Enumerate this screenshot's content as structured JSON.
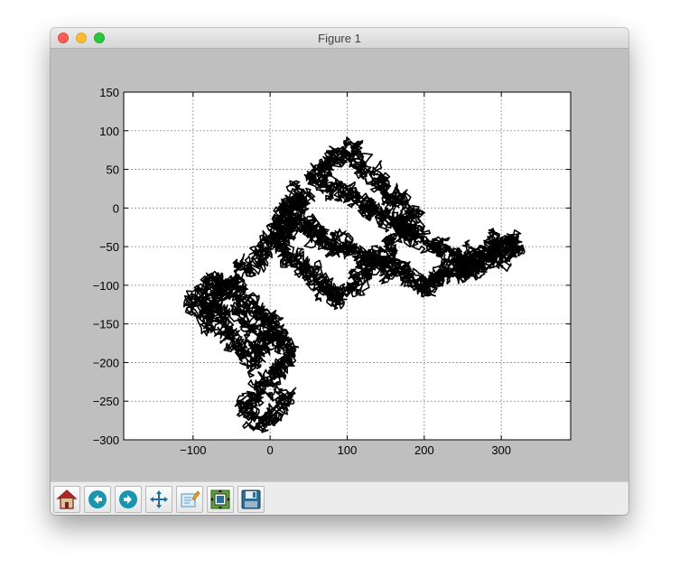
{
  "window": {
    "title": "Figure 1"
  },
  "toolbar": {
    "buttons": [
      {
        "name": "home",
        "icon": "home-icon"
      },
      {
        "name": "back",
        "icon": "back-arrow-icon"
      },
      {
        "name": "forward",
        "icon": "forward-arrow-icon"
      },
      {
        "name": "pan",
        "icon": "move-arrows-icon"
      },
      {
        "name": "zoom",
        "icon": "zoom-rectangle-icon"
      },
      {
        "name": "subplots",
        "icon": "subplots-configure-icon"
      },
      {
        "name": "save",
        "icon": "floppy-disk-icon"
      }
    ]
  },
  "chart_data": {
    "type": "line",
    "title": "",
    "xlabel": "",
    "ylabel": "",
    "xlim": [
      -190,
      390
    ],
    "ylim": [
      -300,
      150
    ],
    "xticks": [
      "−100",
      "0",
      "100",
      "200",
      "300"
    ],
    "yticks": [
      "150",
      "100",
      "50",
      "0",
      "−50",
      "−100",
      "−150",
      "−200",
      "−250",
      "−300"
    ],
    "xtick_values": [
      -100,
      0,
      100,
      200,
      300
    ],
    "ytick_values": [
      150,
      100,
      50,
      0,
      -50,
      -100,
      -150,
      -200,
      -250,
      -300
    ],
    "grid": true,
    "line_color": "#000000",
    "series": [
      {
        "x": [
          20,
          14,
          5,
          -4,
          -14,
          -22,
          -30,
          -26,
          -16,
          -8,
          2,
          10,
          18,
          25,
          20,
          10,
          2,
          -8,
          -20,
          -35,
          -48,
          -60,
          -74,
          -88,
          -100,
          -90,
          -78,
          -70,
          -60,
          -50,
          -40,
          -30,
          -22,
          -14,
          -6,
          2,
          10,
          4,
          -6,
          -16,
          -28,
          -42,
          -55,
          -66,
          -78,
          -90,
          -80,
          -68,
          -56,
          -44,
          -32,
          -20,
          -8,
          4,
          14,
          24,
          30,
          28,
          22,
          30,
          38,
          44,
          36,
          26,
          16,
          8,
          2,
          6,
          14,
          22,
          30,
          38,
          46,
          54,
          62,
          70,
          78,
          88,
          98,
          108,
          118,
          128,
          138,
          148,
          158,
          168,
          178,
          186,
          184,
          178,
          170,
          160,
          150,
          140,
          130,
          120,
          110,
          100,
          90,
          82,
          74,
          66,
          60,
          70,
          80,
          90,
          100,
          110,
          120,
          130,
          140,
          150,
          160,
          170,
          180,
          190,
          200,
          210,
          220,
          230,
          240,
          250,
          260,
          268,
          262,
          256,
          262,
          270,
          278,
          288,
          298,
          308,
          316,
          318,
          310,
          300,
          290,
          280,
          270,
          260,
          250,
          240,
          230,
          220,
          212,
          206,
          200,
          190,
          180,
          170,
          160,
          150,
          140,
          130,
          120,
          112,
          104,
          96,
          88,
          80,
          72,
          64,
          58,
          52,
          46,
          40
        ],
        "y": [
          -240,
          -250,
          -262,
          -270,
          -278,
          -268,
          -258,
          -248,
          -238,
          -228,
          -220,
          -212,
          -204,
          -196,
          -186,
          -178,
          -170,
          -160,
          -152,
          -145,
          -138,
          -132,
          -126,
          -120,
          -122,
          -130,
          -140,
          -150,
          -160,
          -170,
          -180,
          -190,
          -198,
          -190,
          -180,
          -170,
          -160,
          -150,
          -140,
          -130,
          -120,
          -112,
          -104,
          -96,
          -100,
          -108,
          -116,
          -110,
          -100,
          -90,
          -80,
          -70,
          -60,
          -50,
          -40,
          -30,
          -20,
          -10,
          0,
          10,
          20,
          12,
          4,
          -4,
          -12,
          -20,
          -30,
          -40,
          -48,
          -56,
          -64,
          -72,
          -80,
          -88,
          -96,
          -104,
          -112,
          -118,
          -110,
          -100,
          -90,
          -80,
          -70,
          -60,
          -50,
          -40,
          -30,
          -20,
          -10,
          0,
          10,
          20,
          30,
          40,
          50,
          60,
          70,
          72,
          68,
          62,
          56,
          50,
          42,
          36,
          30,
          24,
          18,
          12,
          6,
          0,
          -6,
          -12,
          -18,
          -24,
          -30,
          -36,
          -42,
          -48,
          -54,
          -60,
          -66,
          -72,
          -78,
          -82,
          -76,
          -70,
          -64,
          -58,
          -52,
          -46,
          -40,
          -44,
          -48,
          -52,
          -56,
          -60,
          -64,
          -68,
          -72,
          -76,
          -80,
          -84,
          -88,
          -92,
          -96,
          -98,
          -96,
          -92,
          -88,
          -84,
          -80,
          -76,
          -72,
          -68,
          -64,
          -60,
          -56,
          -52,
          -48,
          -44,
          -40,
          -36,
          -32,
          -28,
          -24,
          -20
        ]
      }
    ]
  }
}
